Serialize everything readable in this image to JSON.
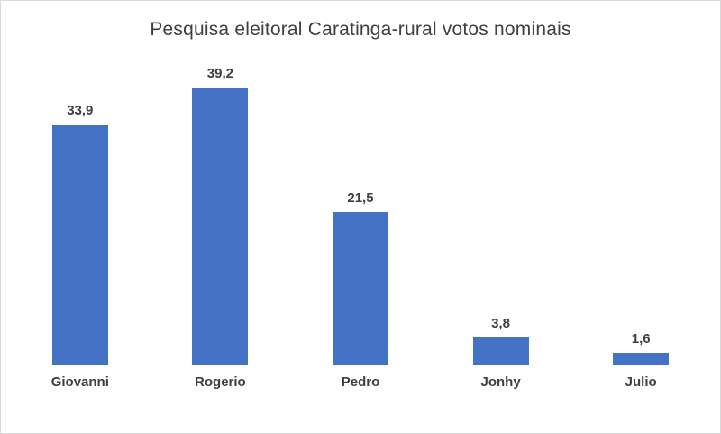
{
  "chart": {
    "title": "Pesquisa eleitoral Caratinga-rural votos nominais"
  },
  "chart_data": {
    "type": "bar",
    "title": "Pesquisa eleitoral Caratinga-rural votos nominais",
    "categories": [
      "Giovanni",
      "Rogerio",
      "Pedro",
      "Jonhy",
      "Julio"
    ],
    "values": [
      33.9,
      39.2,
      21.5,
      3.8,
      1.6
    ],
    "value_labels": [
      "33,9",
      "39,2",
      "21,5",
      "3,8",
      "1,6"
    ],
    "xlabel": "",
    "ylabel": "",
    "ylim": [
      0,
      44
    ],
    "grid": false,
    "legend": null,
    "bar_color": "#4472c4",
    "axis_line_color": "#c6c6c6",
    "text_color": "#3f3f3f"
  }
}
